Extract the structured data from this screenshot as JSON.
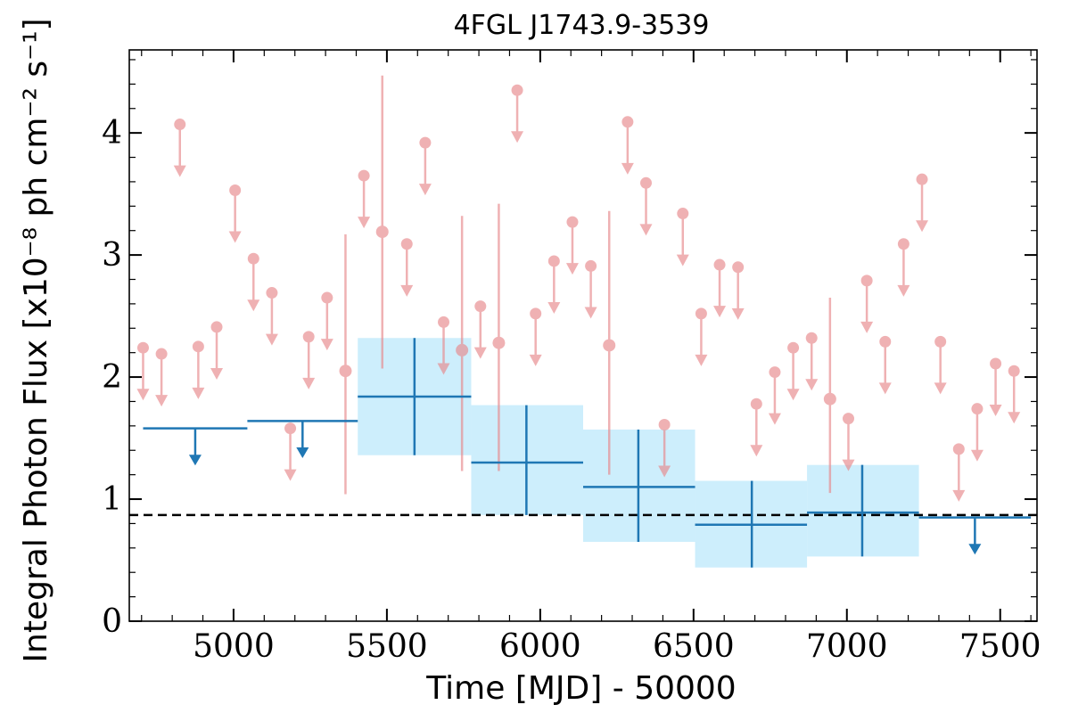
{
  "chart_data": {
    "type": "scatter",
    "title": "4FGL J1743.9-3539",
    "xlabel": "Time [MJD] - 50000",
    "ylabel": "Integral Photon Flux [x10⁻⁸ ph cm⁻² s⁻¹]",
    "xlim": [
      4660,
      7620
    ],
    "ylim": [
      0,
      4.68
    ],
    "x_ticks": [
      5000,
      5500,
      6000,
      6500,
      7000,
      7500
    ],
    "y_ticks": [
      0,
      1,
      2,
      3,
      4
    ],
    "grid": false,
    "colors": {
      "short_bins": "#e8888c",
      "long_bins": "#1f77b4",
      "band_fill": "#cdeefc",
      "reference_line": "#000000"
    },
    "reference_line": {
      "y": 0.87,
      "style": "dashed"
    },
    "series": [
      {
        "marker": "circle",
        "upper_limits": [
          {
            "x": 4705,
            "y": 2.24
          },
          {
            "x": 4765,
            "y": 2.19
          },
          {
            "x": 4825,
            "y": 4.07
          },
          {
            "x": 4885,
            "y": 2.25
          },
          {
            "x": 4945,
            "y": 2.41
          },
          {
            "x": 5005,
            "y": 3.53
          },
          {
            "x": 5065,
            "y": 2.97
          },
          {
            "x": 5125,
            "y": 2.69
          },
          {
            "x": 5185,
            "y": 1.58
          },
          {
            "x": 5245,
            "y": 2.33
          },
          {
            "x": 5305,
            "y": 2.65
          },
          {
            "x": 5425,
            "y": 3.65
          },
          {
            "x": 5565,
            "y": 3.09
          },
          {
            "x": 5625,
            "y": 3.92
          },
          {
            "x": 5685,
            "y": 2.45
          },
          {
            "x": 5805,
            "y": 2.58
          },
          {
            "x": 5925,
            "y": 4.35
          },
          {
            "x": 5985,
            "y": 2.52
          },
          {
            "x": 6045,
            "y": 2.95
          },
          {
            "x": 6105,
            "y": 3.27
          },
          {
            "x": 6165,
            "y": 2.91
          },
          {
            "x": 6285,
            "y": 4.09
          },
          {
            "x": 6345,
            "y": 3.59
          },
          {
            "x": 6405,
            "y": 1.61
          },
          {
            "x": 6465,
            "y": 3.34
          },
          {
            "x": 6525,
            "y": 2.52
          },
          {
            "x": 6585,
            "y": 2.92
          },
          {
            "x": 6645,
            "y": 2.9
          },
          {
            "x": 6705,
            "y": 1.78
          },
          {
            "x": 6765,
            "y": 2.04
          },
          {
            "x": 6825,
            "y": 2.24
          },
          {
            "x": 6885,
            "y": 2.32
          },
          {
            "x": 7005,
            "y": 1.66
          },
          {
            "x": 7065,
            "y": 2.79
          },
          {
            "x": 7125,
            "y": 2.29
          },
          {
            "x": 7185,
            "y": 3.09
          },
          {
            "x": 7245,
            "y": 3.62
          },
          {
            "x": 7305,
            "y": 2.29
          },
          {
            "x": 7365,
            "y": 1.41
          },
          {
            "x": 7425,
            "y": 1.74
          },
          {
            "x": 7485,
            "y": 2.11
          },
          {
            "x": 7545,
            "y": 2.05
          }
        ],
        "detections": [
          {
            "x": 5365,
            "y": 2.05,
            "ylo": 1.04,
            "yhi": 3.17
          },
          {
            "x": 5485,
            "y": 3.19,
            "ylo": 2.07,
            "yhi": 4.47
          },
          {
            "x": 5745,
            "y": 2.22,
            "ylo": 1.23,
            "yhi": 3.32
          },
          {
            "x": 5865,
            "y": 2.28,
            "ylo": 1.23,
            "yhi": 3.42
          },
          {
            "x": 6225,
            "y": 2.26,
            "ylo": 1.2,
            "yhi": 3.36
          },
          {
            "x": 6945,
            "y": 1.82,
            "ylo": 1.05,
            "yhi": 2.65
          }
        ]
      },
      {
        "marker": "errorbar",
        "upper_limits": [
          {
            "xmin": 4705,
            "xmax": 5045,
            "y": 1.58
          },
          {
            "xmin": 5045,
            "xmax": 5405,
            "y": 1.64
          },
          {
            "xmin": 7235,
            "xmax": 7600,
            "y": 0.85
          }
        ],
        "detections": [
          {
            "xmin": 5405,
            "xmax": 5775,
            "x": 5590,
            "y": 1.84,
            "ylo": 1.36,
            "yhi": 2.32
          },
          {
            "xmin": 5775,
            "xmax": 6140,
            "x": 5955,
            "y": 1.3,
            "ylo": 0.87,
            "yhi": 1.77
          },
          {
            "xmin": 6140,
            "xmax": 6505,
            "x": 6320,
            "y": 1.1,
            "ylo": 0.65,
            "yhi": 1.57
          },
          {
            "xmin": 6505,
            "xmax": 6870,
            "x": 6690,
            "y": 0.79,
            "ylo": 0.44,
            "yhi": 1.15
          },
          {
            "xmin": 6870,
            "xmax": 7235,
            "x": 7050,
            "y": 0.89,
            "ylo": 0.53,
            "yhi": 1.28
          }
        ]
      }
    ]
  }
}
